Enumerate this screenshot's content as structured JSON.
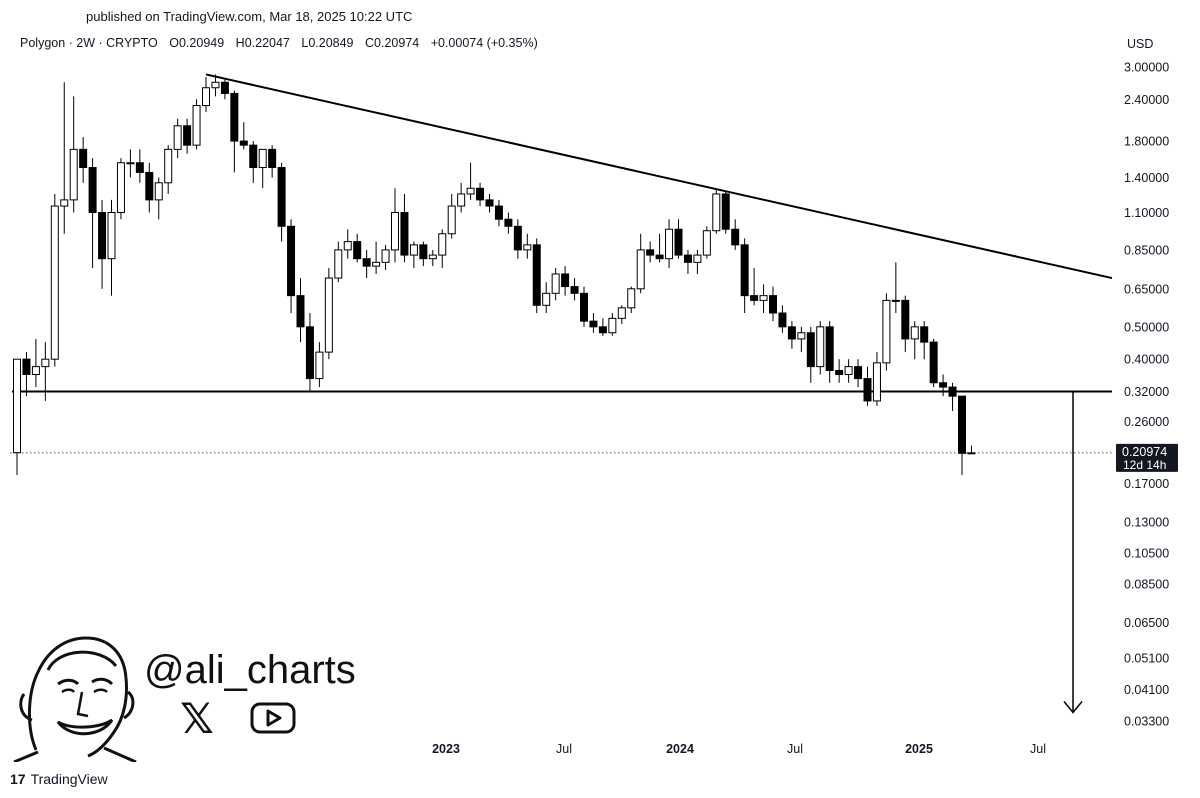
{
  "header": {
    "published": "published on TradingView.com, Mar 18, 2025 10:22 UTC"
  },
  "legend": {
    "symbol": "Polygon · 2W · CRYPTO",
    "open_label": "O",
    "open": "0.20949",
    "high_label": "H",
    "high": "0.22047",
    "low_label": "L",
    "low": "0.20849",
    "close_label": "C",
    "close": "0.20974",
    "change": "+0.00074 (+0.35%)"
  },
  "branding": {
    "handle": "@ali_charts",
    "x_icon": "x-logo-icon",
    "youtube_icon": "youtube-play-icon",
    "avatar_icon": "cartoon-face-avatar",
    "footer": "TradingView"
  },
  "chart_data": {
    "type": "candlestick",
    "scale": "log",
    "currency_label": "USD",
    "y_ticks": [
      "3.00000",
      "2.40000",
      "1.80000",
      "1.40000",
      "1.10000",
      "0.85000",
      "0.65000",
      "0.50000",
      "0.40000",
      "0.32000",
      "0.26000",
      "0.17000",
      "0.13000",
      "0.10500",
      "0.08500",
      "0.06500",
      "0.05100",
      "0.04100",
      "0.03300"
    ],
    "x_ticks": [
      "2023",
      "Jul",
      "2024",
      "Jul",
      "2025",
      "Jul"
    ],
    "last_price": "0.20974",
    "countdown": "12d 14h",
    "support_level": 0.32,
    "trendline": [
      [
        5,
        2.85
      ],
      [
        54,
        0.7
      ]
    ],
    "target_arrow": {
      "x": 49,
      "from": 0.32,
      "to": 0.035
    },
    "candles": [
      {
        "o": 0.21,
        "h": 0.4,
        "l": 0.18,
        "c": 0.4
      },
      {
        "o": 0.4,
        "h": 0.42,
        "l": 0.31,
        "c": 0.36
      },
      {
        "o": 0.36,
        "h": 0.46,
        "l": 0.33,
        "c": 0.38
      },
      {
        "o": 0.38,
        "h": 0.45,
        "l": 0.3,
        "c": 0.4
      },
      {
        "o": 0.4,
        "h": 1.25,
        "l": 0.38,
        "c": 1.15
      },
      {
        "o": 1.15,
        "h": 2.7,
        "l": 0.95,
        "c": 1.2
      },
      {
        "o": 1.2,
        "h": 2.45,
        "l": 1.1,
        "c": 1.7
      },
      {
        "o": 1.7,
        "h": 1.85,
        "l": 1.35,
        "c": 1.5
      },
      {
        "o": 1.5,
        "h": 1.6,
        "l": 0.75,
        "c": 1.1
      },
      {
        "o": 1.1,
        "h": 1.2,
        "l": 0.65,
        "c": 0.8
      },
      {
        "o": 0.8,
        "h": 1.2,
        "l": 0.62,
        "c": 1.1
      },
      {
        "o": 1.1,
        "h": 1.6,
        "l": 1.05,
        "c": 1.55
      },
      {
        "o": 1.55,
        "h": 1.7,
        "l": 1.4,
        "c": 1.55
      },
      {
        "o": 1.55,
        "h": 1.7,
        "l": 1.35,
        "c": 1.45
      },
      {
        "o": 1.45,
        "h": 1.55,
        "l": 1.1,
        "c": 1.2
      },
      {
        "o": 1.2,
        "h": 1.4,
        "l": 1.05,
        "c": 1.35
      },
      {
        "o": 1.35,
        "h": 1.75,
        "l": 1.25,
        "c": 1.7
      },
      {
        "o": 1.7,
        "h": 2.1,
        "l": 1.6,
        "c": 2.0
      },
      {
        "o": 2.0,
        "h": 2.1,
        "l": 1.65,
        "c": 1.75
      },
      {
        "o": 1.75,
        "h": 2.4,
        "l": 1.7,
        "c": 2.3
      },
      {
        "o": 2.3,
        "h": 2.8,
        "l": 2.2,
        "c": 2.6
      },
      {
        "o": 2.6,
        "h": 2.85,
        "l": 2.45,
        "c": 2.7
      },
      {
        "o": 2.7,
        "h": 2.75,
        "l": 2.4,
        "c": 2.5
      },
      {
        "o": 2.5,
        "h": 2.55,
        "l": 1.45,
        "c": 1.8
      },
      {
        "o": 1.8,
        "h": 2.05,
        "l": 1.7,
        "c": 1.75
      },
      {
        "o": 1.75,
        "h": 1.8,
        "l": 1.35,
        "c": 1.5
      },
      {
        "o": 1.5,
        "h": 1.7,
        "l": 1.3,
        "c": 1.7
      },
      {
        "o": 1.7,
        "h": 1.75,
        "l": 1.4,
        "c": 1.5
      },
      {
        "o": 1.5,
        "h": 1.55,
        "l": 0.9,
        "c": 1.0
      },
      {
        "o": 1.0,
        "h": 1.05,
        "l": 0.55,
        "c": 0.62
      },
      {
        "o": 0.62,
        "h": 0.7,
        "l": 0.45,
        "c": 0.5
      },
      {
        "o": 0.5,
        "h": 0.55,
        "l": 0.32,
        "c": 0.35
      },
      {
        "o": 0.35,
        "h": 0.45,
        "l": 0.33,
        "c": 0.42
      },
      {
        "o": 0.42,
        "h": 0.75,
        "l": 0.4,
        "c": 0.7
      },
      {
        "o": 0.7,
        "h": 0.9,
        "l": 0.68,
        "c": 0.85
      },
      {
        "o": 0.85,
        "h": 0.98,
        "l": 0.8,
        "c": 0.9
      },
      {
        "o": 0.9,
        "h": 0.95,
        "l": 0.78,
        "c": 0.8
      },
      {
        "o": 0.8,
        "h": 0.85,
        "l": 0.7,
        "c": 0.76
      },
      {
        "o": 0.76,
        "h": 0.9,
        "l": 0.72,
        "c": 0.78
      },
      {
        "o": 0.78,
        "h": 0.88,
        "l": 0.74,
        "c": 0.85
      },
      {
        "o": 0.85,
        "h": 1.3,
        "l": 0.78,
        "c": 1.1
      },
      {
        "o": 1.1,
        "h": 1.25,
        "l": 0.78,
        "c": 0.82
      },
      {
        "o": 0.82,
        "h": 0.9,
        "l": 0.75,
        "c": 0.88
      },
      {
        "o": 0.88,
        "h": 0.9,
        "l": 0.76,
        "c": 0.8
      },
      {
        "o": 0.8,
        "h": 0.85,
        "l": 0.76,
        "c": 0.82
      },
      {
        "o": 0.82,
        "h": 0.98,
        "l": 0.75,
        "c": 0.95
      },
      {
        "o": 0.95,
        "h": 1.25,
        "l": 0.92,
        "c": 1.15
      },
      {
        "o": 1.15,
        "h": 1.35,
        "l": 1.1,
        "c": 1.25
      },
      {
        "o": 1.25,
        "h": 1.55,
        "l": 1.2,
        "c": 1.3
      },
      {
        "o": 1.3,
        "h": 1.35,
        "l": 1.15,
        "c": 1.2
      },
      {
        "o": 1.2,
        "h": 1.25,
        "l": 1.1,
        "c": 1.15
      },
      {
        "o": 1.15,
        "h": 1.2,
        "l": 1.0,
        "c": 1.05
      },
      {
        "o": 1.05,
        "h": 1.1,
        "l": 0.95,
        "c": 1.0
      },
      {
        "o": 1.0,
        "h": 1.05,
        "l": 0.8,
        "c": 0.85
      },
      {
        "o": 0.85,
        "h": 0.95,
        "l": 0.8,
        "c": 0.88
      },
      {
        "o": 0.88,
        "h": 0.92,
        "l": 0.55,
        "c": 0.58
      },
      {
        "o": 0.58,
        "h": 0.68,
        "l": 0.55,
        "c": 0.63
      },
      {
        "o": 0.63,
        "h": 0.75,
        "l": 0.6,
        "c": 0.72
      },
      {
        "o": 0.72,
        "h": 0.76,
        "l": 0.62,
        "c": 0.66
      },
      {
        "o": 0.66,
        "h": 0.7,
        "l": 0.6,
        "c": 0.63
      },
      {
        "o": 0.63,
        "h": 0.66,
        "l": 0.5,
        "c": 0.52
      },
      {
        "o": 0.52,
        "h": 0.55,
        "l": 0.48,
        "c": 0.5
      },
      {
        "o": 0.5,
        "h": 0.53,
        "l": 0.47,
        "c": 0.48
      },
      {
        "o": 0.48,
        "h": 0.55,
        "l": 0.47,
        "c": 0.53
      },
      {
        "o": 0.53,
        "h": 0.58,
        "l": 0.51,
        "c": 0.57
      },
      {
        "o": 0.57,
        "h": 0.66,
        "l": 0.55,
        "c": 0.65
      },
      {
        "o": 0.65,
        "h": 0.95,
        "l": 0.63,
        "c": 0.85
      },
      {
        "o": 0.85,
        "h": 0.9,
        "l": 0.78,
        "c": 0.82
      },
      {
        "o": 0.82,
        "h": 0.95,
        "l": 0.78,
        "c": 0.8
      },
      {
        "o": 0.8,
        "h": 1.05,
        "l": 0.75,
        "c": 0.98
      },
      {
        "o": 0.98,
        "h": 1.05,
        "l": 0.8,
        "c": 0.82
      },
      {
        "o": 0.82,
        "h": 0.85,
        "l": 0.72,
        "c": 0.78
      },
      {
        "o": 0.78,
        "h": 0.85,
        "l": 0.72,
        "c": 0.82
      },
      {
        "o": 0.82,
        "h": 1.0,
        "l": 0.8,
        "c": 0.97
      },
      {
        "o": 0.97,
        "h": 1.3,
        "l": 0.95,
        "c": 1.25
      },
      {
        "o": 1.25,
        "h": 1.28,
        "l": 0.95,
        "c": 0.98
      },
      {
        "o": 0.98,
        "h": 1.05,
        "l": 0.85,
        "c": 0.88
      },
      {
        "o": 0.88,
        "h": 0.92,
        "l": 0.55,
        "c": 0.62
      },
      {
        "o": 0.62,
        "h": 0.75,
        "l": 0.58,
        "c": 0.6
      },
      {
        "o": 0.6,
        "h": 0.67,
        "l": 0.55,
        "c": 0.62
      },
      {
        "o": 0.62,
        "h": 0.66,
        "l": 0.52,
        "c": 0.55
      },
      {
        "o": 0.55,
        "h": 0.58,
        "l": 0.48,
        "c": 0.5
      },
      {
        "o": 0.5,
        "h": 0.52,
        "l": 0.43,
        "c": 0.46
      },
      {
        "o": 0.46,
        "h": 0.5,
        "l": 0.42,
        "c": 0.48
      },
      {
        "o": 0.48,
        "h": 0.5,
        "l": 0.34,
        "c": 0.38
      },
      {
        "o": 0.38,
        "h": 0.52,
        "l": 0.36,
        "c": 0.5
      },
      {
        "o": 0.5,
        "h": 0.52,
        "l": 0.34,
        "c": 0.37
      },
      {
        "o": 0.37,
        "h": 0.4,
        "l": 0.34,
        "c": 0.36
      },
      {
        "o": 0.36,
        "h": 0.4,
        "l": 0.34,
        "c": 0.38
      },
      {
        "o": 0.38,
        "h": 0.4,
        "l": 0.33,
        "c": 0.35
      },
      {
        "o": 0.35,
        "h": 0.38,
        "l": 0.29,
        "c": 0.3
      },
      {
        "o": 0.3,
        "h": 0.42,
        "l": 0.29,
        "c": 0.39
      },
      {
        "o": 0.39,
        "h": 0.63,
        "l": 0.37,
        "c": 0.6
      },
      {
        "o": 0.6,
        "h": 0.78,
        "l": 0.55,
        "c": 0.6
      },
      {
        "o": 0.6,
        "h": 0.62,
        "l": 0.42,
        "c": 0.46
      },
      {
        "o": 0.46,
        "h": 0.52,
        "l": 0.4,
        "c": 0.5
      },
      {
        "o": 0.5,
        "h": 0.52,
        "l": 0.4,
        "c": 0.45
      },
      {
        "o": 0.45,
        "h": 0.46,
        "l": 0.33,
        "c": 0.34
      },
      {
        "o": 0.34,
        "h": 0.36,
        "l": 0.31,
        "c": 0.33
      },
      {
        "o": 0.33,
        "h": 0.34,
        "l": 0.28,
        "c": 0.31
      },
      {
        "o": 0.31,
        "h": 0.31,
        "l": 0.18,
        "c": 0.209
      },
      {
        "o": 0.20949,
        "h": 0.22047,
        "l": 0.20849,
        "c": 0.20974
      }
    ]
  }
}
